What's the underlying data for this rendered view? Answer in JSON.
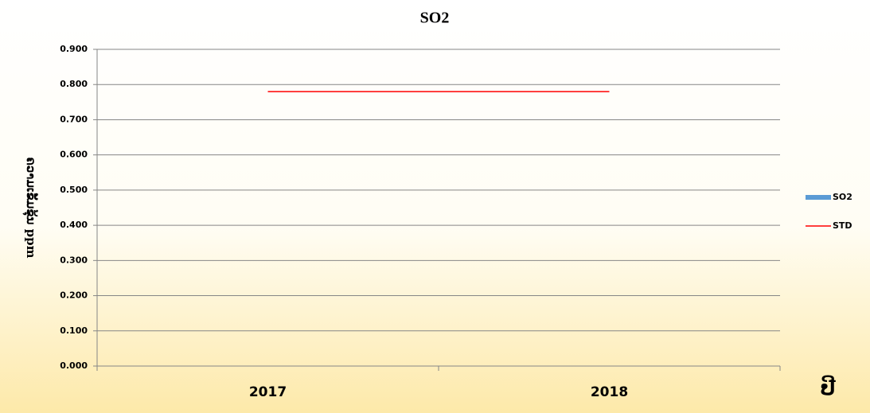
{
  "chart_data": {
    "type": "bar",
    "title": "SO2",
    "y_label": "ຄວາມເຂັ້ມຂຸ້ນ ppm",
    "x_label": "ປີ",
    "categories": [
      "2017",
      "2018"
    ],
    "series": [
      {
        "name": "SO2",
        "type": "bar",
        "color": "#5b9bd5",
        "values": [
          0,
          0
        ]
      },
      {
        "name": "STD",
        "type": "line",
        "color": "#ff0000",
        "values": [
          0.78,
          0.78
        ]
      }
    ],
    "ylim": [
      0,
      0.9
    ],
    "yticks": [
      {
        "value": 0,
        "label": "0.000"
      },
      {
        "value": 0.1,
        "label": "0.100"
      },
      {
        "value": 0.2,
        "label": "0.200"
      },
      {
        "value": 0.3,
        "label": "0.300"
      },
      {
        "value": 0.4,
        "label": "0.400"
      },
      {
        "value": 0.5,
        "label": "0.500"
      },
      {
        "value": 0.6,
        "label": "0.600"
      },
      {
        "value": 0.7,
        "label": "0.700"
      },
      {
        "value": 0.8,
        "label": "0.800"
      },
      {
        "value": 0.9,
        "label": "0.900"
      }
    ],
    "grid": true,
    "legend": "right"
  }
}
